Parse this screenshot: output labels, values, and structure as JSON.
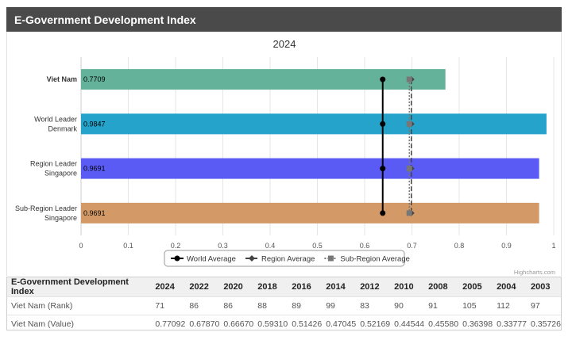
{
  "header": {
    "title": "E-Government Development Index"
  },
  "chart_data": {
    "type": "bar",
    "orientation": "horizontal",
    "title": "2024",
    "categories": [
      [
        "Viet Nam"
      ],
      [
        "World Leader",
        "Denmark"
      ],
      [
        "Region Leader",
        "Singapore"
      ],
      [
        "Sub-Region Leader",
        "Singapore"
      ]
    ],
    "values": [
      0.7709,
      0.9847,
      0.9691,
      0.9691
    ],
    "value_labels": [
      "0.7709",
      "0.9847",
      "0.9691",
      "0.9691"
    ],
    "colors": [
      "#64b29a",
      "#25a3cb",
      "#5a5af5",
      "#d39a68"
    ],
    "bold_category": 0,
    "xlim": [
      0,
      1
    ],
    "xticks": [
      "0",
      "0.1",
      "0.2",
      "0.3",
      "0.4",
      "0.5",
      "0.6",
      "0.7",
      "0.8",
      "0.9",
      "1"
    ],
    "grid": true,
    "legend_position": "bottom-center",
    "reference_series": [
      {
        "name": "World Average",
        "value": 0.6382,
        "color": "#000000",
        "marker": "circle",
        "line": "solid"
      },
      {
        "name": "Region Average",
        "value": 0.6987,
        "color": "#444444",
        "marker": "diamond",
        "line": "dashed"
      },
      {
        "name": "Sub-Region Average",
        "value": 0.6945,
        "color": "#777777",
        "marker": "square",
        "line": "dotted"
      }
    ],
    "credit": "Highcharts.com"
  },
  "table": {
    "headers": [
      "E-Government Development Index",
      "2024",
      "2022",
      "2020",
      "2018",
      "2016",
      "2014",
      "2012",
      "2010",
      "2008",
      "2005",
      "2004",
      "2003"
    ],
    "rows": [
      [
        "Viet Nam (Rank)",
        "71",
        "86",
        "86",
        "88",
        "89",
        "99",
        "83",
        "90",
        "91",
        "105",
        "112",
        "97"
      ],
      [
        "Viet Nam (Value)",
        "0.77092",
        "0.67870",
        "0.66670",
        "0.59310",
        "0.51426",
        "0.47045",
        "0.52169",
        "0.44544",
        "0.45580",
        "0.36398",
        "0.33777",
        "0.35726"
      ]
    ]
  }
}
